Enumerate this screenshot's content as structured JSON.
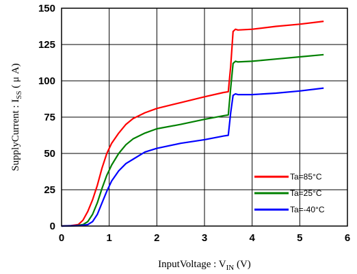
{
  "chart_data": {
    "type": "line",
    "xlabel": {
      "main": "InputVoltage : V",
      "sub": "IN",
      "unit": " (V)"
    },
    "ylabel": {
      "main": "SupplyCurrent : I",
      "sub": "SS",
      "unit": " ( μ A)"
    },
    "xlim": [
      0,
      6
    ],
    "ylim": [
      0,
      150
    ],
    "xticks": [
      "0",
      "1",
      "2",
      "3",
      "4",
      "5",
      "6"
    ],
    "yticks": [
      "0",
      "25",
      "50",
      "75",
      "100",
      "125",
      "150"
    ],
    "grid": true,
    "legend_position": "bottom-right",
    "series": [
      {
        "name": "Ta=85°C",
        "color": "#ff0000",
        "points": [
          [
            0,
            0
          ],
          [
            0.2,
            0.3
          ],
          [
            0.35,
            1
          ],
          [
            0.45,
            4
          ],
          [
            0.55,
            10
          ],
          [
            0.65,
            18
          ],
          [
            0.75,
            28
          ],
          [
            0.85,
            40
          ],
          [
            0.95,
            50
          ],
          [
            1.05,
            57
          ],
          [
            1.2,
            64
          ],
          [
            1.35,
            70
          ],
          [
            1.5,
            74
          ],
          [
            1.75,
            78
          ],
          [
            2.0,
            81
          ],
          [
            2.5,
            85
          ],
          [
            3.0,
            89
          ],
          [
            3.4,
            92
          ],
          [
            3.5,
            92.5
          ],
          [
            3.55,
            110
          ],
          [
            3.6,
            134
          ],
          [
            3.65,
            135.5
          ],
          [
            3.7,
            135
          ],
          [
            4.0,
            135.5
          ],
          [
            4.5,
            137.5
          ],
          [
            5.0,
            139
          ],
          [
            5.5,
            141
          ]
        ]
      },
      {
        "name": "Ta=25°C",
        "color": "#008000",
        "points": [
          [
            0,
            0
          ],
          [
            0.3,
            0.3
          ],
          [
            0.45,
            1
          ],
          [
            0.55,
            3
          ],
          [
            0.65,
            8
          ],
          [
            0.75,
            16
          ],
          [
            0.85,
            26
          ],
          [
            0.95,
            35
          ],
          [
            1.05,
            42
          ],
          [
            1.2,
            50
          ],
          [
            1.35,
            56
          ],
          [
            1.5,
            60
          ],
          [
            1.75,
            64
          ],
          [
            2.0,
            67
          ],
          [
            2.5,
            70
          ],
          [
            3.0,
            73.5
          ],
          [
            3.4,
            76
          ],
          [
            3.5,
            76.5
          ],
          [
            3.55,
            95
          ],
          [
            3.6,
            112
          ],
          [
            3.65,
            113.5
          ],
          [
            3.7,
            113
          ],
          [
            4.0,
            113.5
          ],
          [
            4.5,
            115
          ],
          [
            5.0,
            116.5
          ],
          [
            5.5,
            118
          ]
        ]
      },
      {
        "name": "Ta=-40°C",
        "color": "#0000ff",
        "points": [
          [
            0,
            0
          ],
          [
            0.4,
            0.3
          ],
          [
            0.55,
            1
          ],
          [
            0.65,
            3
          ],
          [
            0.75,
            8
          ],
          [
            0.85,
            16
          ],
          [
            0.95,
            24
          ],
          [
            1.05,
            31
          ],
          [
            1.2,
            38
          ],
          [
            1.35,
            43
          ],
          [
            1.5,
            46
          ],
          [
            1.75,
            51
          ],
          [
            2.0,
            53.5
          ],
          [
            2.5,
            57
          ],
          [
            3.0,
            59.5
          ],
          [
            3.4,
            62
          ],
          [
            3.5,
            62.5
          ],
          [
            3.55,
            78
          ],
          [
            3.6,
            90
          ],
          [
            3.65,
            91
          ],
          [
            3.7,
            90.5
          ],
          [
            4.0,
            90.5
          ],
          [
            4.5,
            91.5
          ],
          [
            5.0,
            93
          ],
          [
            5.5,
            95
          ]
        ]
      }
    ]
  }
}
